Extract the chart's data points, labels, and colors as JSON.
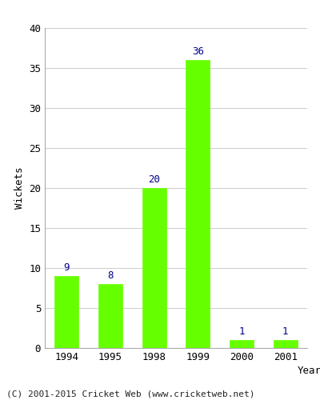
{
  "categories": [
    "1994",
    "1995",
    "1998",
    "1999",
    "2000",
    "2001"
  ],
  "values": [
    9,
    8,
    20,
    36,
    1,
    1
  ],
  "bar_color": "#66ff00",
  "bar_edge_color": "#66ff00",
  "label_color": "#00008b",
  "ylabel": "Wickets",
  "xlabel": "Year",
  "ylim": [
    0,
    40
  ],
  "yticks": [
    0,
    5,
    10,
    15,
    20,
    25,
    30,
    35,
    40
  ],
  "footnote": "(C) 2001-2015 Cricket Web (www.cricketweb.net)",
  "background_color": "#ffffff",
  "axes_bg_color": "#ffffff",
  "grid_color": "#cccccc",
  "spine_color": "#aaaaaa",
  "annot_fontsize": 9,
  "tick_fontsize": 9,
  "ylabel_fontsize": 9,
  "xlabel_fontsize": 9,
  "footnote_fontsize": 8
}
